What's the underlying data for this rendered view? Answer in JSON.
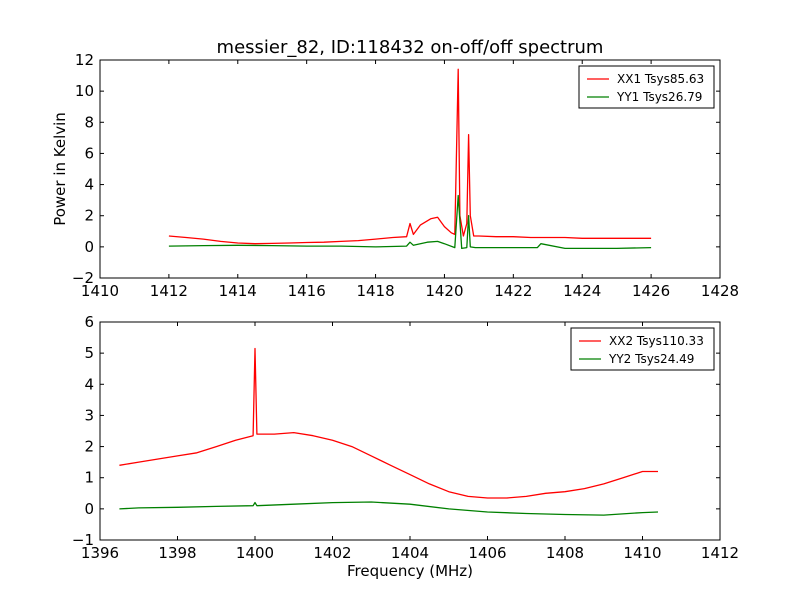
{
  "chart_data": [
    {
      "type": "line",
      "title": "messier_82, ID:118432 on-off/off spectrum",
      "xlabel": "",
      "ylabel": "Power in Kelvin",
      "xlim": [
        1410,
        1428
      ],
      "ylim": [
        -2,
        12
      ],
      "xticks": [
        1410,
        1412,
        1414,
        1416,
        1418,
        1420,
        1422,
        1424,
        1426,
        1428
      ],
      "yticks": [
        -2,
        0,
        2,
        4,
        6,
        8,
        10,
        12
      ],
      "tick_labels_x": [
        "1410",
        "1412",
        "1414",
        "1416",
        "1418",
        "1420",
        "1422",
        "1424",
        "1426",
        "1428"
      ],
      "tick_labels_y": [
        "−2",
        "0",
        "2",
        "4",
        "6",
        "8",
        "10",
        "12"
      ],
      "legend_position": "top-right",
      "grid": false,
      "series": [
        {
          "name": "XX1 Tsys85.63",
          "color": "#ff0000",
          "x": [
            1412.0,
            1412.5,
            1413.0,
            1413.5,
            1414.0,
            1414.5,
            1415.0,
            1415.5,
            1416.0,
            1416.5,
            1417.0,
            1417.5,
            1418.0,
            1418.5,
            1418.9,
            1419.0,
            1419.1,
            1419.3,
            1419.6,
            1419.8,
            1420.0,
            1420.2,
            1420.3,
            1420.4,
            1420.45,
            1420.55,
            1420.65,
            1420.7,
            1420.75,
            1420.85,
            1421.0,
            1421.5,
            1422.0,
            1422.5,
            1423.0,
            1423.5,
            1424.0,
            1424.5,
            1425.0,
            1425.5,
            1426.0
          ],
          "y": [
            0.7,
            0.6,
            0.5,
            0.35,
            0.25,
            0.2,
            0.22,
            0.25,
            0.28,
            0.3,
            0.35,
            0.4,
            0.5,
            0.6,
            0.65,
            1.5,
            0.8,
            1.4,
            1.8,
            1.9,
            1.3,
            0.9,
            0.8,
            11.4,
            2.0,
            0.7,
            1.5,
            7.2,
            2.0,
            0.7,
            0.7,
            0.65,
            0.65,
            0.6,
            0.6,
            0.6,
            0.55,
            0.55,
            0.55,
            0.55,
            0.55
          ]
        },
        {
          "name": "YY1 Tsys26.79",
          "color": "#008000",
          "x": [
            1412.0,
            1413.0,
            1414.0,
            1415.0,
            1416.0,
            1417.0,
            1418.0,
            1418.9,
            1419.0,
            1419.1,
            1419.5,
            1419.8,
            1420.0,
            1420.3,
            1420.4,
            1420.5,
            1420.65,
            1420.7,
            1420.75,
            1420.9,
            1421.5,
            1422.0,
            1422.7,
            1422.8,
            1423.5,
            1424.0,
            1425.0,
            1426.0
          ],
          "y": [
            0.05,
            0.08,
            0.1,
            0.08,
            0.05,
            0.05,
            0.0,
            0.05,
            0.3,
            0.1,
            0.3,
            0.35,
            0.2,
            -0.05,
            3.3,
            -0.1,
            -0.05,
            2.0,
            0.0,
            -0.05,
            -0.05,
            -0.05,
            -0.05,
            0.2,
            -0.1,
            -0.1,
            -0.1,
            -0.05
          ]
        }
      ]
    },
    {
      "type": "line",
      "title": "",
      "xlabel": "Frequency (MHz)",
      "ylabel": "",
      "xlim": [
        1396,
        1412
      ],
      "ylim": [
        -1,
        6
      ],
      "xticks": [
        1396,
        1398,
        1400,
        1402,
        1404,
        1406,
        1408,
        1410,
        1412
      ],
      "yticks": [
        -1,
        0,
        1,
        2,
        3,
        4,
        5,
        6
      ],
      "tick_labels_x": [
        "1396",
        "1398",
        "1400",
        "1402",
        "1404",
        "1406",
        "1408",
        "1410",
        "1412"
      ],
      "tick_labels_y": [
        "−1",
        "0",
        "1",
        "2",
        "3",
        "4",
        "5",
        "6"
      ],
      "legend_position": "top-right",
      "grid": false,
      "series": [
        {
          "name": "XX2 Tsys110.33",
          "color": "#ff0000",
          "x": [
            1396.5,
            1397.0,
            1397.5,
            1398.0,
            1398.5,
            1399.0,
            1399.5,
            1399.95,
            1400.0,
            1400.05,
            1400.5,
            1401.0,
            1401.5,
            1402.0,
            1402.5,
            1403.0,
            1403.5,
            1404.0,
            1404.5,
            1405.0,
            1405.5,
            1406.0,
            1406.5,
            1407.0,
            1407.5,
            1408.0,
            1408.5,
            1409.0,
            1409.5,
            1410.0,
            1410.4
          ],
          "y": [
            1.4,
            1.5,
            1.6,
            1.7,
            1.8,
            2.0,
            2.2,
            2.35,
            5.15,
            2.4,
            2.4,
            2.45,
            2.35,
            2.2,
            2.0,
            1.7,
            1.4,
            1.1,
            0.8,
            0.55,
            0.4,
            0.35,
            0.35,
            0.4,
            0.5,
            0.55,
            0.65,
            0.8,
            1.0,
            1.2,
            1.2
          ]
        },
        {
          "name": "YY2 Tsys24.49",
          "color": "#008000",
          "x": [
            1396.5,
            1397.0,
            1398.0,
            1399.0,
            1399.95,
            1400.0,
            1400.05,
            1401.0,
            1402.0,
            1403.0,
            1404.0,
            1405.0,
            1406.0,
            1407.0,
            1408.0,
            1409.0,
            1410.0,
            1410.4
          ],
          "y": [
            0.0,
            0.03,
            0.05,
            0.08,
            0.1,
            0.2,
            0.1,
            0.15,
            0.2,
            0.22,
            0.15,
            0.0,
            -0.1,
            -0.15,
            -0.18,
            -0.2,
            -0.12,
            -0.1
          ]
        }
      ]
    }
  ]
}
